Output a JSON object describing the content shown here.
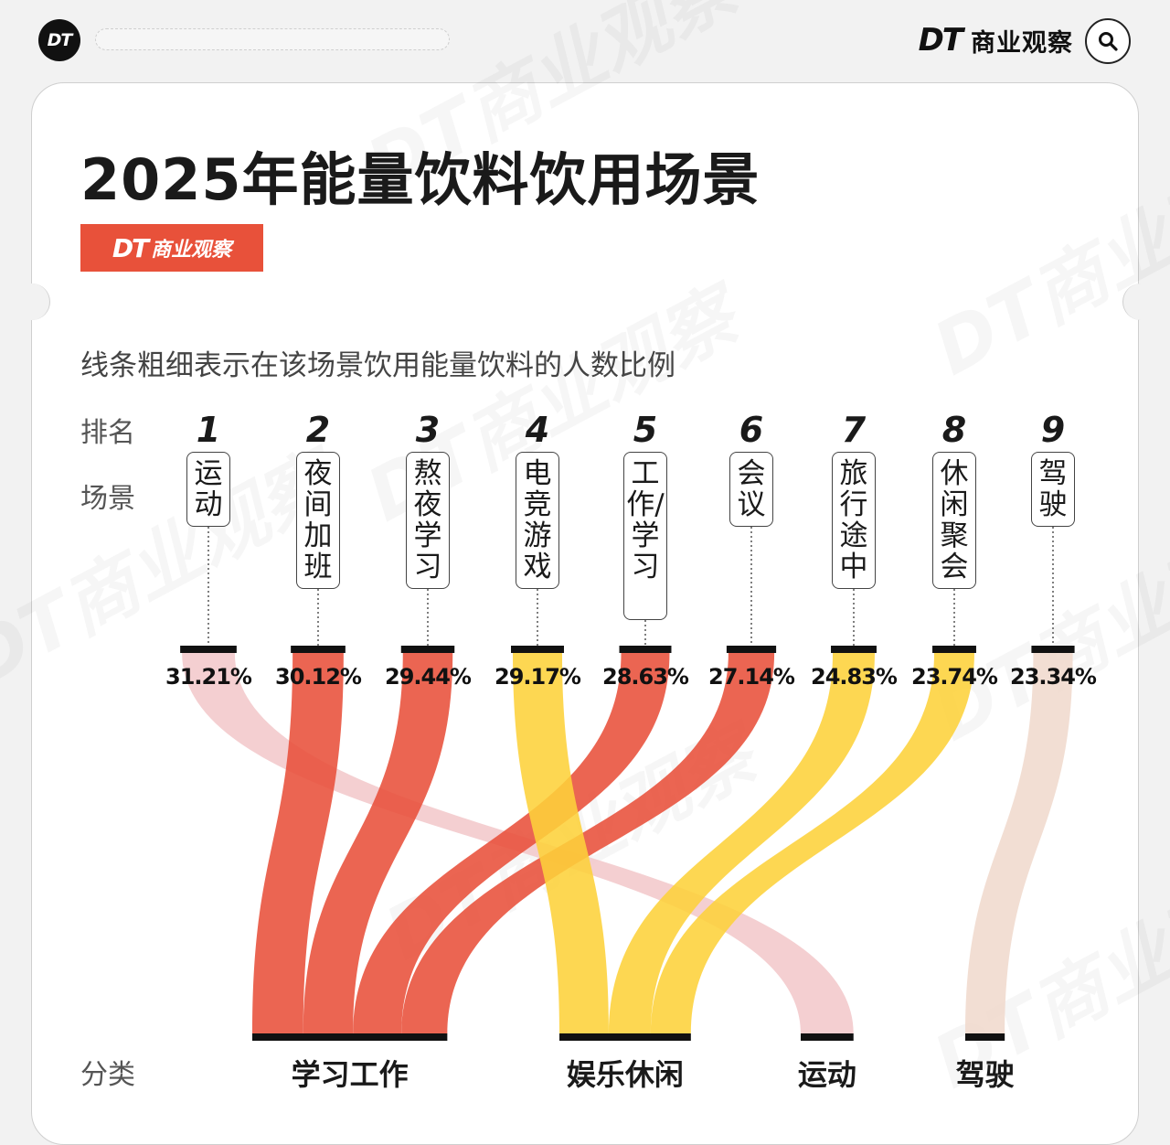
{
  "header": {
    "logo_text": "DT",
    "brand_dt": "DT",
    "brand_name": "商业观察"
  },
  "title": "2025年能量饮料饮用场景",
  "badge": {
    "dt": "DT",
    "name": "商业观察"
  },
  "subtitle": "线条粗细表示在该场景饮用能量饮料的人数比例",
  "labels": {
    "rank": "排名",
    "scene": "场景",
    "category": "分类"
  },
  "watermark": "DT商业观察",
  "colors": {
    "work": "#e8503a",
    "entertainment": "#fdd23a",
    "sport": "#f2c7c9",
    "driving": "#f0d8cb",
    "bar": "#111111"
  },
  "chart_data": {
    "type": "sankey",
    "title": "2025年能量饮料饮用场景",
    "unit": "%",
    "scenes": [
      {
        "rank": "1",
        "name": "运动",
        "value": 31.21,
        "value_label": "31.21%",
        "category": "运动"
      },
      {
        "rank": "2",
        "name": "夜间加班",
        "value": 30.12,
        "value_label": "30.12%",
        "category": "学习工作"
      },
      {
        "rank": "3",
        "name": "熬夜学习",
        "value": 29.44,
        "value_label": "29.44%",
        "category": "学习工作"
      },
      {
        "rank": "4",
        "name": "电竞游戏",
        "value": 29.17,
        "value_label": "29.17%",
        "category": "娱乐休闲"
      },
      {
        "rank": "5",
        "name": "工作/学习",
        "value": 28.63,
        "value_label": "28.63%",
        "category": "学习工作"
      },
      {
        "rank": "6",
        "name": "会议",
        "value": 27.14,
        "value_label": "27.14%",
        "category": "学习工作"
      },
      {
        "rank": "7",
        "name": "旅行途中",
        "value": 24.83,
        "value_label": "24.83%",
        "category": "娱乐休闲"
      },
      {
        "rank": "8",
        "name": "休闲聚会",
        "value": 23.74,
        "value_label": "23.74%",
        "category": "娱乐休闲"
      },
      {
        "rank": "9",
        "name": "驾驶",
        "value": 23.34,
        "value_label": "23.34%",
        "category": "驾驶"
      }
    ],
    "categories": [
      "学习工作",
      "娱乐休闲",
      "运动",
      "驾驶"
    ]
  }
}
